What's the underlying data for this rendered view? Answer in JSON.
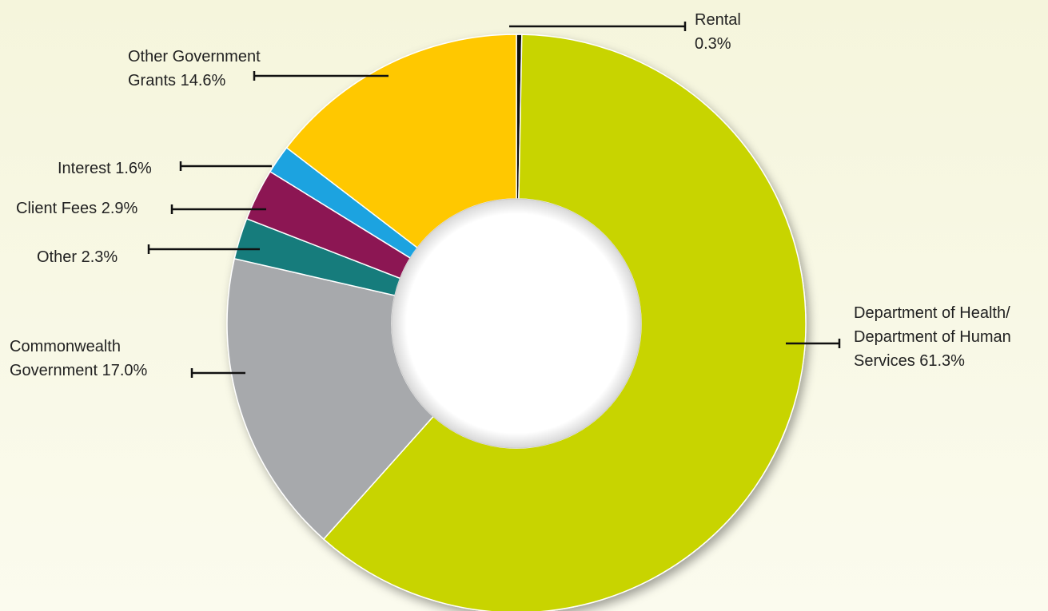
{
  "chart_data": {
    "type": "pie",
    "style": "donut",
    "title": "",
    "legend": "none (labels beside slices)",
    "slices": [
      {
        "name": "Rental",
        "label": [
          "Rental",
          "0.3%"
        ],
        "value": 0.3,
        "color": "#111111"
      },
      {
        "name": "Department of Health/ Department of Human Services",
        "label": [
          "Department of Health/",
          "Department of Human",
          "Services 61.3%"
        ],
        "value": 61.3,
        "color": "#c8d400"
      },
      {
        "name": "Commonwealth Government",
        "label": [
          "Commonwealth",
          "Government 17.0%"
        ],
        "value": 17.0,
        "color": "#a7a9ac"
      },
      {
        "name": "Other",
        "label": [
          "Other 2.3%"
        ],
        "value": 2.3,
        "color": "#127c7c"
      },
      {
        "name": "Client Fees",
        "label": [
          "Client Fees 2.9%"
        ],
        "value": 2.9,
        "color": "#8c1652"
      },
      {
        "name": "Interest",
        "label": [
          "Interest 1.6%"
        ],
        "value": 1.6,
        "color": "#1aa3e0"
      },
      {
        "name": "Other Government Grants",
        "label": [
          "Other Government",
          "Grants 14.6%"
        ],
        "value": 14.6,
        "color": "#ffc800"
      }
    ]
  }
}
